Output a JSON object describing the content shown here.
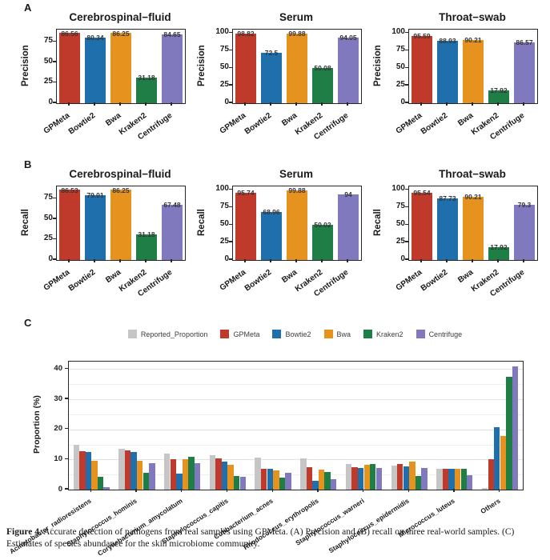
{
  "figure": {
    "panels": [
      {
        "label": "A"
      },
      {
        "label": "B"
      },
      {
        "label": "C"
      }
    ]
  },
  "caption": {
    "label": "Figure 4.",
    "text": " Accurate detection of pathogens from real samples using GPMeta. (A) Precision and (B) recall on three real-world samples. (C) Estimates of species abundance for the skin microbiome community."
  },
  "colors": {
    "gpmeta": "#bf3a2b",
    "bowtie2": "#1f6fad",
    "bwa": "#e6921f",
    "kraken2": "#1f7e45",
    "centrifuge": "#8179bd",
    "reported": "#c6c6c6",
    "axis": "#262626"
  },
  "chart_data": [
    {
      "type": "bar",
      "panel": "A",
      "title": "Cerebrospinal−fluid",
      "ylabel": "Precision",
      "categories": [
        "GPMeta",
        "Bowtie2",
        "Bwa",
        "Kraken2",
        "Centrifuge"
      ],
      "values": [
        86.56,
        80.34,
        86.25,
        31.18,
        84.65
      ],
      "labels": [
        "86.56",
        "80.34",
        "86.25",
        "31.18",
        "84.65"
      ],
      "bar_colors": [
        "#bf3a2b",
        "#1f6fad",
        "#e6921f",
        "#1f7e45",
        "#8179bd"
      ],
      "yticks": [
        0,
        25,
        50,
        75
      ],
      "ylim": [
        0,
        90
      ],
      "grid": false
    },
    {
      "type": "bar",
      "panel": "A",
      "title": "Serum",
      "ylabel": "Precision",
      "categories": [
        "GPMeta",
        "Bowtie2",
        "Bwa",
        "Kraken2",
        "Centrifuge"
      ],
      "values": [
        98.82,
        72.5,
        99.88,
        50.08,
        94.05
      ],
      "labels": [
        "98.82",
        "72.5",
        "99.88",
        "50.08",
        "94.05"
      ],
      "bar_colors": [
        "#bf3a2b",
        "#1f6fad",
        "#e6921f",
        "#1f7e45",
        "#8179bd"
      ],
      "yticks": [
        0,
        25,
        50,
        75,
        100
      ],
      "ylim": [
        0,
        105
      ],
      "grid": false
    },
    {
      "type": "bar",
      "panel": "A",
      "title": "Throat−swab",
      "ylabel": "Precision",
      "categories": [
        "GPMeta",
        "Bowtie2",
        "Bwa",
        "Kraken2",
        "Centrifuge"
      ],
      "values": [
        95.59,
        88.93,
        90.21,
        17.92,
        86.57
      ],
      "labels": [
        "95.59",
        "88.93",
        "90.21",
        "17.92",
        "86.57"
      ],
      "bar_colors": [
        "#bf3a2b",
        "#1f6fad",
        "#e6921f",
        "#1f7e45",
        "#8179bd"
      ],
      "yticks": [
        0,
        25,
        50,
        75,
        100
      ],
      "ylim": [
        0,
        105
      ],
      "grid": false
    },
    {
      "type": "bar",
      "panel": "B",
      "title": "Cerebrospinal−fluid",
      "ylabel": "Recall",
      "categories": [
        "GPMeta",
        "Bowtie2",
        "Bwa",
        "Kraken2",
        "Centrifuge"
      ],
      "values": [
        86.53,
        79.01,
        86.25,
        31.18,
        67.48
      ],
      "labels": [
        "86.53",
        "79.01",
        "86.25",
        "31.18",
        "67.48"
      ],
      "bar_colors": [
        "#bf3a2b",
        "#1f6fad",
        "#e6921f",
        "#1f7e45",
        "#8179bd"
      ],
      "yticks": [
        0,
        25,
        50,
        75
      ],
      "ylim": [
        0,
        90
      ],
      "grid": false
    },
    {
      "type": "bar",
      "panel": "B",
      "title": "Serum",
      "ylabel": "Recall",
      "categories": [
        "GPMeta",
        "Bowtie2",
        "Bwa",
        "Kraken2",
        "Centrifuge"
      ],
      "values": [
        95.74,
        68.96,
        99.88,
        50.02,
        94
      ],
      "labels": [
        "95.74",
        "68.96",
        "99.88",
        "50.02",
        "94"
      ],
      "bar_colors": [
        "#bf3a2b",
        "#1f6fad",
        "#e6921f",
        "#1f7e45",
        "#8179bd"
      ],
      "yticks": [
        0,
        25,
        50,
        75,
        100
      ],
      "ylim": [
        0,
        105
      ],
      "grid": false
    },
    {
      "type": "bar",
      "panel": "B",
      "title": "Throat−swab",
      "ylabel": "Recall",
      "categories": [
        "GPMeta",
        "Bowtie2",
        "Bwa",
        "Kraken2",
        "Centrifuge"
      ],
      "values": [
        95.54,
        87.73,
        90.21,
        17.92,
        79.3
      ],
      "labels": [
        "95.54",
        "87.73",
        "90.21",
        "17.92",
        "79.3"
      ],
      "bar_colors": [
        "#bf3a2b",
        "#1f6fad",
        "#e6921f",
        "#1f7e45",
        "#8179bd"
      ],
      "yticks": [
        0,
        25,
        50,
        75,
        100
      ],
      "ylim": [
        0,
        105
      ],
      "grid": false
    },
    {
      "type": "grouped-bar",
      "panel": "C",
      "title": "",
      "ylabel": "Proportion (%)",
      "categories": [
        "Acinetobacter_radioresistens",
        "Staphylococcus_hominis",
        "Corynebacterium_amycolatum",
        "Staphylococcus_capitis",
        "Cutibacterium_acnes",
        "Rhodococcus_erythropolis",
        "Staphylococcus_warneri",
        "Staphylococcus_epidermidis",
        "Micrococcus_luteus",
        "Others"
      ],
      "series": [
        {
          "name": "Reported_Proportion",
          "color": "#c6c6c6",
          "values": [
            14.8,
            13.6,
            12.0,
            11.5,
            10.7,
            10.4,
            8.5,
            7.9,
            6.9,
            0.5
          ]
        },
        {
          "name": "GPMeta",
          "color": "#bf3a2b",
          "values": [
            12.8,
            12.9,
            10.2,
            10.4,
            7.0,
            7.5,
            7.5,
            8.4,
            6.9,
            10.0
          ]
        },
        {
          "name": "Bowtie2",
          "color": "#1f6fad",
          "values": [
            12.6,
            12.5,
            5.4,
            9.3,
            6.8,
            2.9,
            7.3,
            7.7,
            6.9,
            20.8
          ]
        },
        {
          "name": "Bwa",
          "color": "#e6921f",
          "values": [
            9.5,
            9.6,
            10.2,
            8.3,
            6.4,
            6.7,
            8.2,
            9.3,
            6.9,
            17.8
          ]
        },
        {
          "name": "Kraken2",
          "color": "#1f7e45",
          "values": [
            4.2,
            5.6,
            10.9,
            4.4,
            4.0,
            5.8,
            8.6,
            4.4,
            6.8,
            37.5
          ]
        },
        {
          "name": "Centrifuge",
          "color": "#8179bd",
          "values": [
            0.9,
            8.8,
            8.9,
            4.3,
            5.5,
            3.5,
            7.1,
            7.1,
            4.8,
            40.8
          ]
        }
      ],
      "yticks": [
        0,
        10,
        20,
        30,
        40
      ],
      "ylim": [
        0,
        42.5
      ],
      "grid": true,
      "legend_position": "top"
    }
  ]
}
